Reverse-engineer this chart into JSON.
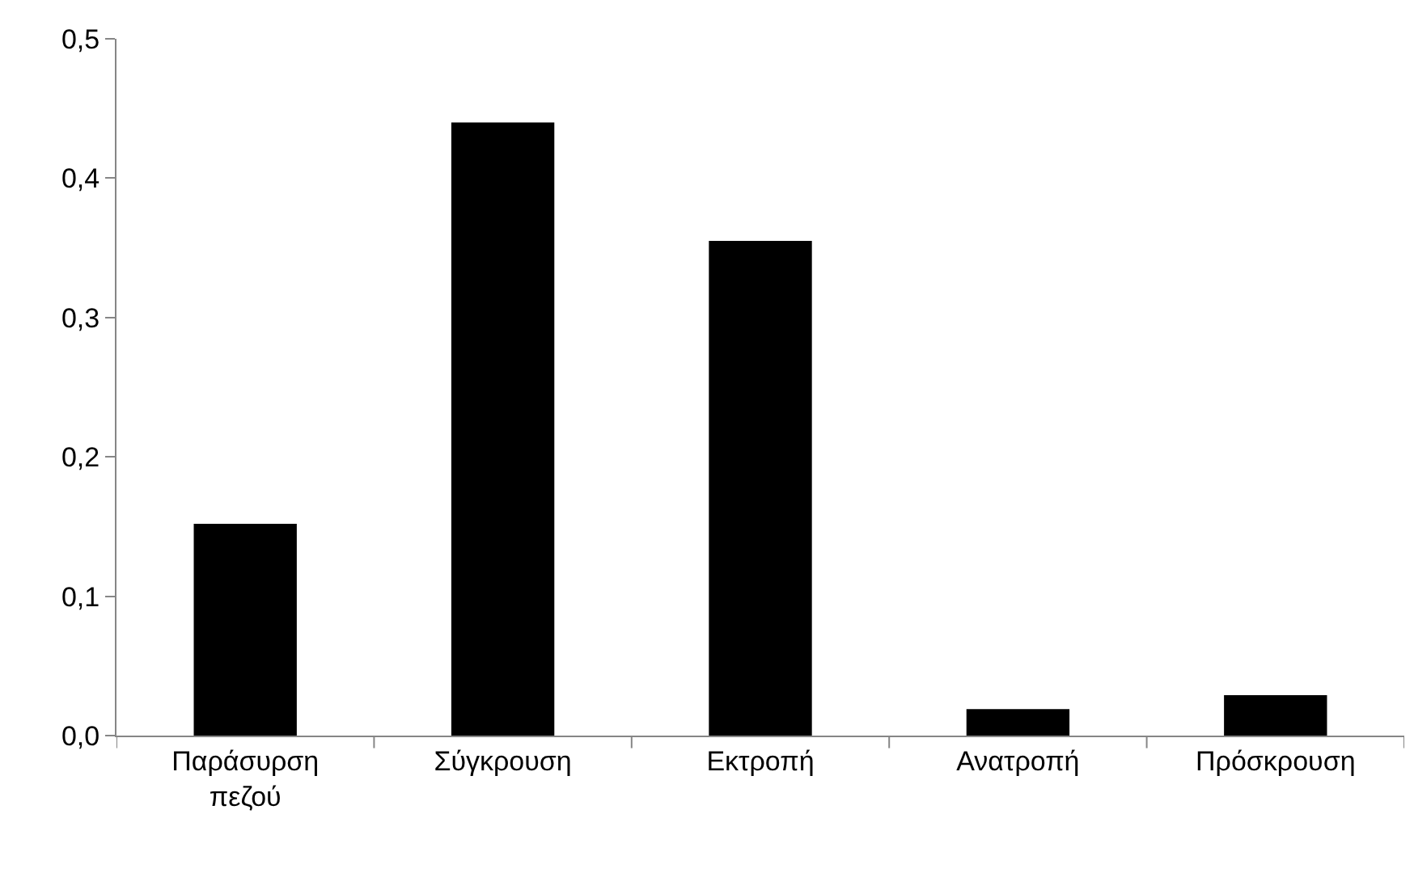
{
  "chart_data": {
    "type": "bar",
    "categories": [
      "Παράσυρση πεζού",
      "Σύγκρουση",
      "Εκτροπή",
      "Ανατροπή",
      "Πρόσκρουση"
    ],
    "values": [
      0.152,
      0.44,
      0.355,
      0.019,
      0.029
    ],
    "color": "#000000",
    "ylim": [
      0,
      0.5
    ],
    "yticks": [
      {
        "value": 0,
        "label": "0,0"
      },
      {
        "value": 0.1,
        "label": "0,1"
      },
      {
        "value": 0.2,
        "label": "0,2"
      },
      {
        "value": 0.3,
        "label": "0,3"
      },
      {
        "value": 0.4,
        "label": "0,4"
      },
      {
        "value": 0.5,
        "label": "0,5"
      }
    ],
    "grid": false
  }
}
